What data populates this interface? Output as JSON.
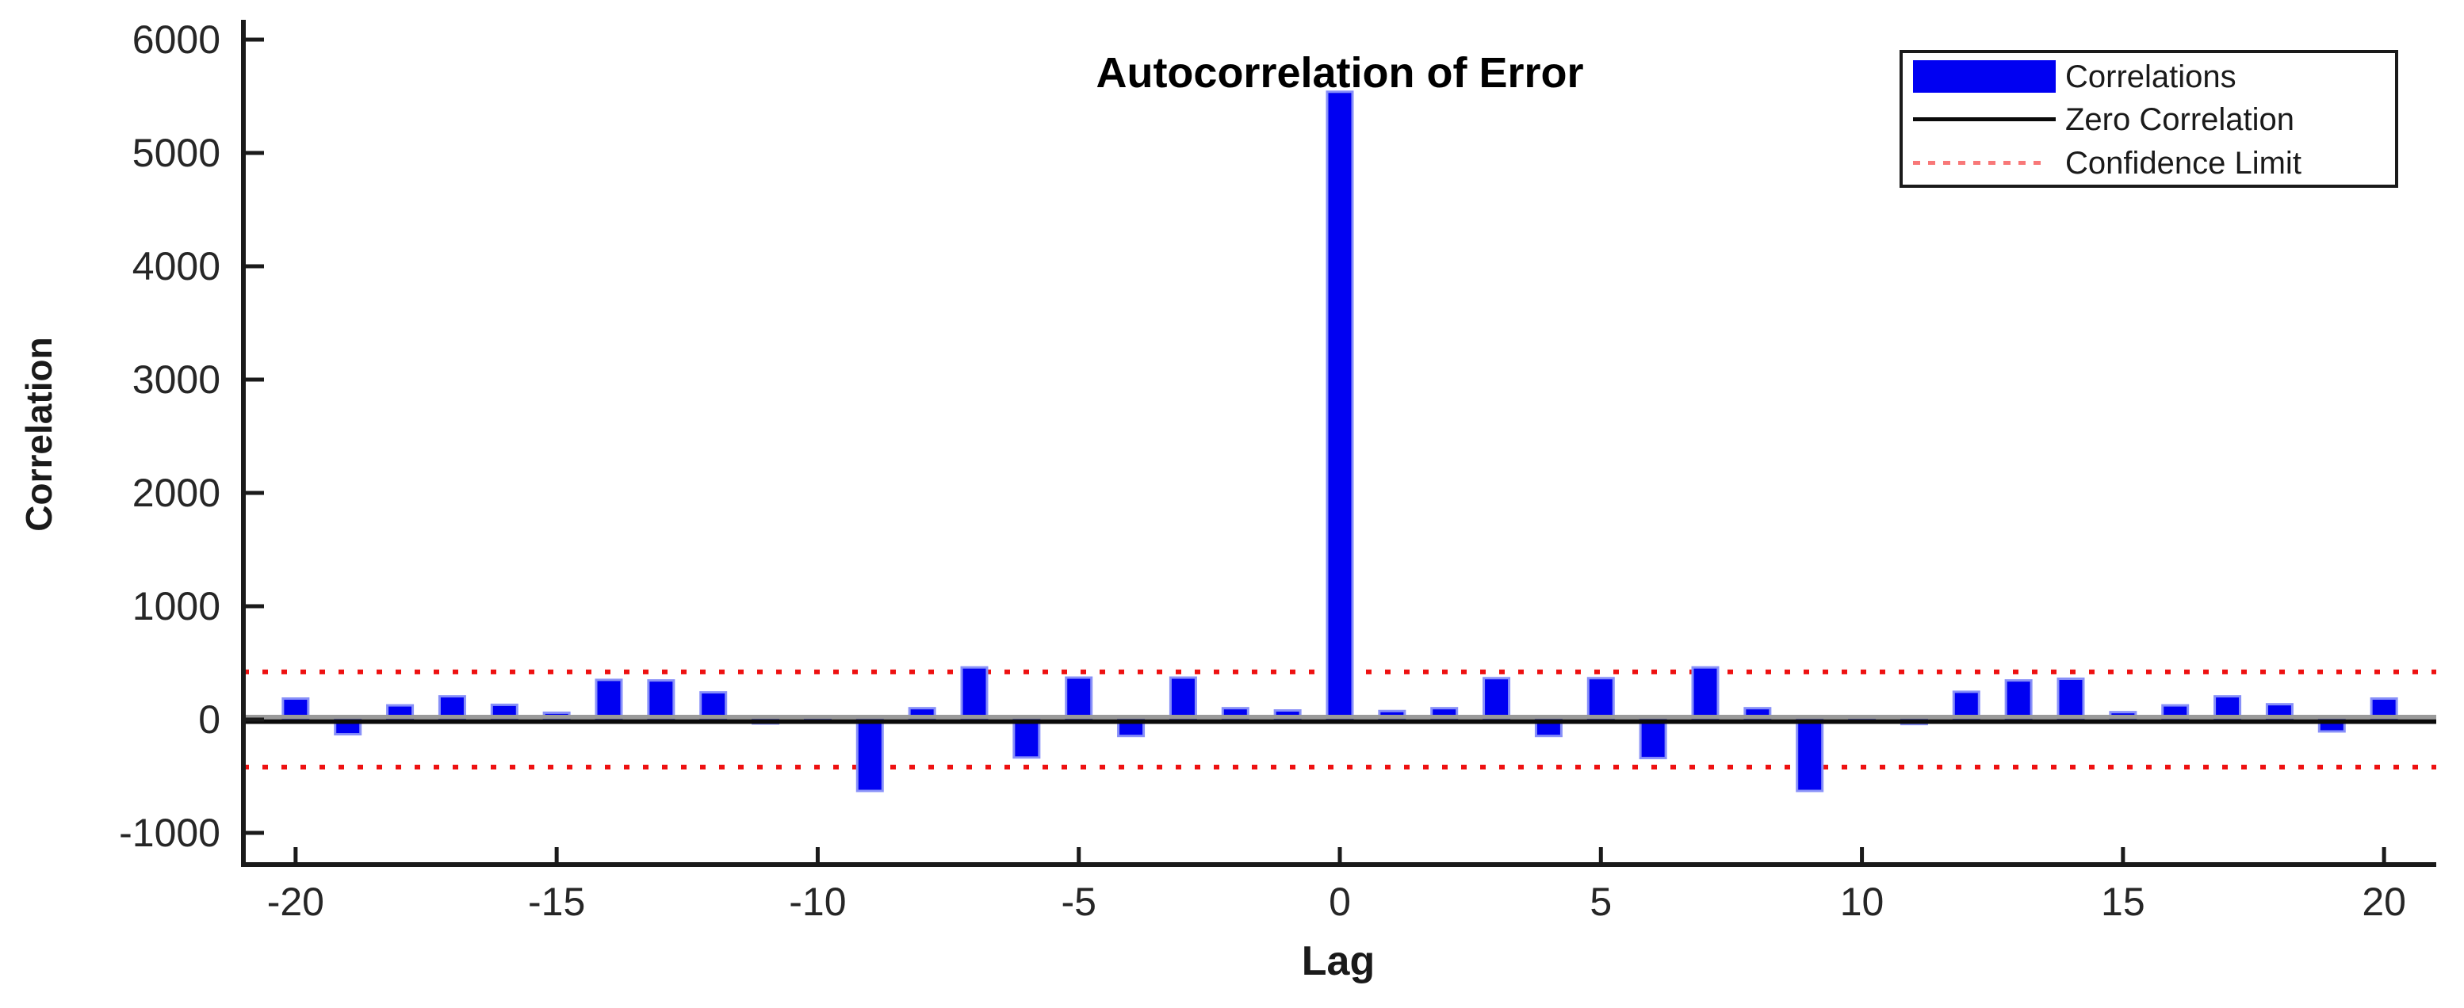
{
  "figure": {
    "title": "Autocorrelation of Error",
    "xlabel": "Lag",
    "ylabel": "Correlation"
  },
  "legend": {
    "position": "top-right",
    "items": [
      {
        "label": "Correlations",
        "type": "patch",
        "color": "#0000F2"
      },
      {
        "label": "Zero Correlation",
        "type": "solid-line",
        "color": "#0A0A0A"
      },
      {
        "label": "Confidence Limit",
        "type": "dashed-line",
        "color": "#F87878"
      }
    ]
  },
  "chart_data": {
    "type": "bar",
    "title": "Autocorrelation of Error",
    "xlabel": "Lag",
    "ylabel": "Correlation",
    "x": [
      -20,
      -19,
      -18,
      -17,
      -16,
      -15,
      -14,
      -13,
      -12,
      -11,
      -10,
      -9,
      -8,
      -7,
      -6,
      -5,
      -4,
      -3,
      -2,
      -1,
      0,
      1,
      2,
      3,
      4,
      5,
      6,
      7,
      8,
      9,
      10,
      11,
      12,
      13,
      14,
      15,
      16,
      17,
      18,
      19,
      20
    ],
    "values": [
      185,
      -130,
      125,
      205,
      130,
      60,
      350,
      345,
      240,
      -35,
      30,
      -630,
      100,
      460,
      -335,
      370,
      -145,
      370,
      100,
      80,
      5540,
      75,
      100,
      365,
      -145,
      365,
      -340,
      460,
      100,
      -630,
      30,
      -40,
      245,
      345,
      360,
      65,
      125,
      205,
      135,
      -105,
      185
    ],
    "zero_line": 0,
    "confidence_limit": 420,
    "xlim": [
      -21,
      21
    ],
    "ylim": [
      -1280,
      6175
    ],
    "xticks": [
      -20,
      -15,
      -10,
      -5,
      0,
      5,
      10,
      15,
      20
    ],
    "yticks": [
      -1000,
      0,
      1000,
      2000,
      3000,
      4000,
      5000,
      6000
    ],
    "grid": false,
    "legend_position": "top-right",
    "colors": {
      "bar_fill": "#0000F2",
      "bar_edge": "#8890F8",
      "zero_line": "#0A0A0A",
      "baseline_gray": "#9A9A9A",
      "confidence_line": "#EE1111",
      "axis": "#1A1A1A",
      "tick_text": "#262626",
      "legend_dash": "#F87878",
      "background": "#FFFFFF"
    }
  }
}
